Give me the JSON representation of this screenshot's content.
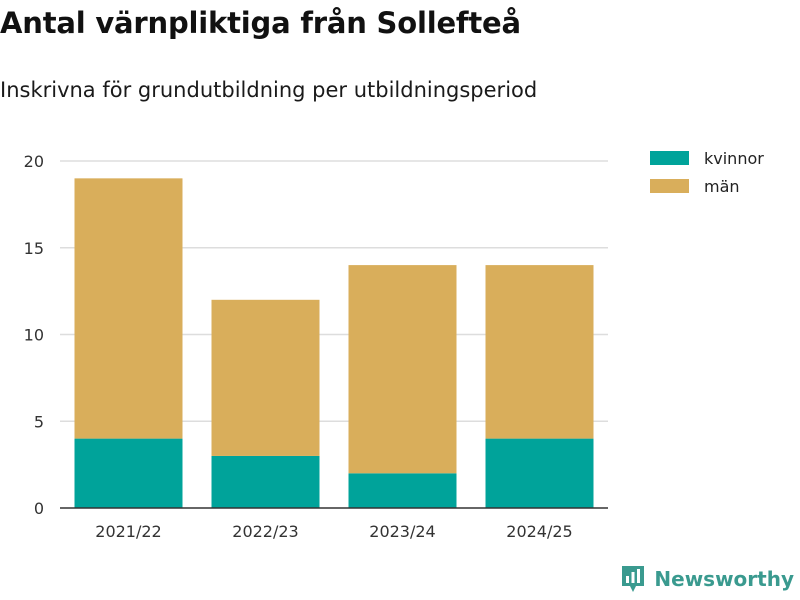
{
  "header": {
    "title": "Antal värnpliktiga från Sollefteå",
    "subtitle": "Inskrivna för grundutbildning per utbildningsperiod"
  },
  "brand": {
    "name": "Newsworthy",
    "icon": "bar-chart-badge-icon",
    "color": "#3a9a8f"
  },
  "chart_data": {
    "type": "bar",
    "stacked": true,
    "title": "Antal värnpliktiga från Sollefteå",
    "subtitle": "Inskrivna för grundutbildning per utbildningsperiod",
    "xlabel": "",
    "ylabel": "",
    "categories": [
      "2021/22",
      "2022/23",
      "2023/24",
      "2024/25"
    ],
    "series": [
      {
        "name": "kvinnor",
        "color": "#00a39a",
        "values": [
          4,
          3,
          2,
          4
        ]
      },
      {
        "name": "män",
        "color": "#d9ae5b",
        "values": [
          15,
          9,
          12,
          10
        ]
      }
    ],
    "ylim": [
      0,
      20
    ],
    "yticks": [
      0,
      5,
      10,
      15,
      20
    ],
    "grid": true,
    "legend_position": "top-right"
  }
}
